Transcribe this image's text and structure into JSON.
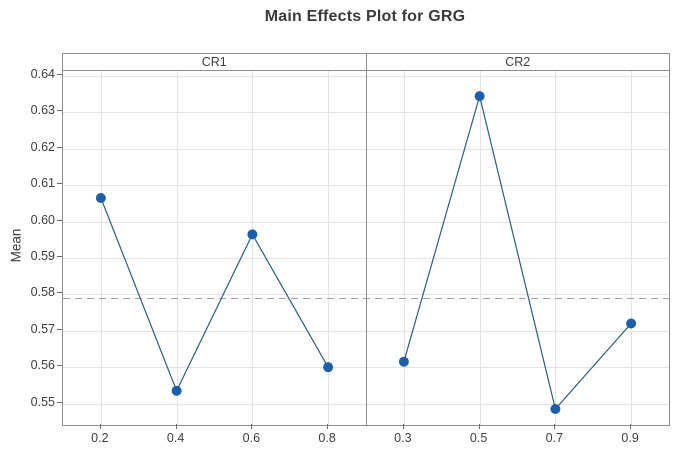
{
  "chart_data": {
    "type": "line",
    "title": "Main Effects Plot for GRG",
    "ylabel": "Mean",
    "xlabel": "",
    "ylim": [
      0.5441,
      0.6414
    ],
    "yticks": [
      0.64,
      0.63,
      0.62,
      0.61,
      0.6,
      0.59,
      0.58,
      0.57,
      0.56,
      0.55
    ],
    "ytick_decimals": 2,
    "grid": true,
    "legend": "none",
    "grand_mean_reference_line": 0.5791,
    "panels": [
      {
        "label": "CR1",
        "categories": [
          "0.2",
          "0.4",
          "0.6",
          "0.8"
        ],
        "values": [
          0.6065,
          0.5535,
          0.5965,
          0.56
        ]
      },
      {
        "label": "CR2",
        "categories": [
          "0.3",
          "0.5",
          "0.7",
          "0.9"
        ],
        "values": [
          0.5615,
          0.6345,
          0.5485,
          0.572
        ]
      }
    ],
    "colors": {
      "marker": "#1b5faa",
      "line": "#2b6073",
      "grid": "#e4e4e4",
      "frame": "#8f8f8f",
      "tick": "#6b6b6b",
      "mean_line": "#a3a3a3",
      "text": "#3d3d3d"
    }
  }
}
